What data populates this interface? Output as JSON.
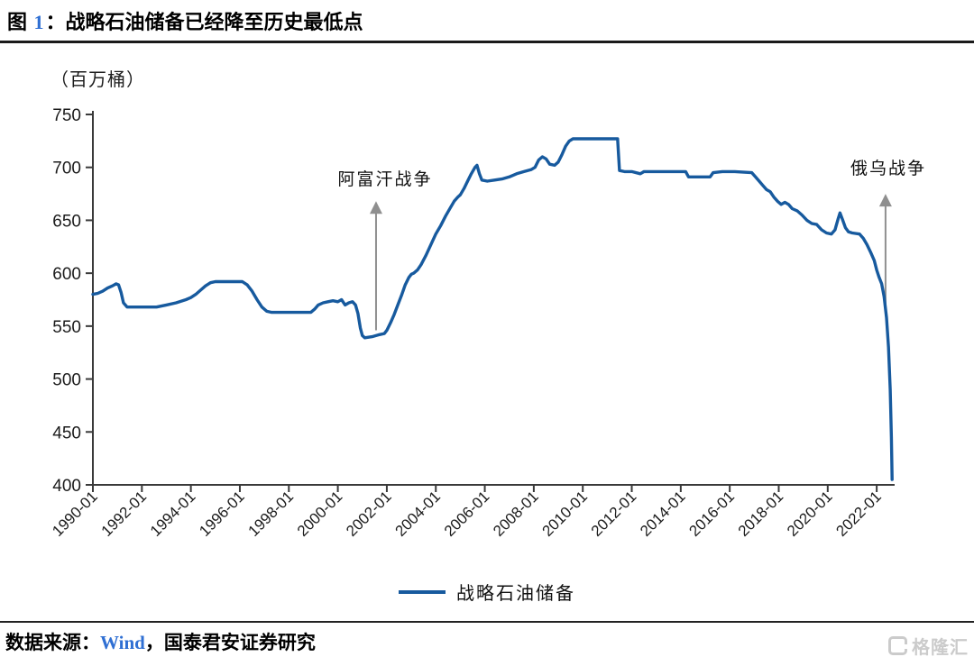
{
  "header": {
    "figure_label": "图",
    "figure_number": "1",
    "separator": "：",
    "title": "战略石油储备已经降至历史最低点"
  },
  "footer": {
    "source_prefix": "数据来源：",
    "source_name": "Wind",
    "source_suffix": "，国泰君安证券研究"
  },
  "watermark": {
    "text": "格隆汇"
  },
  "colors": {
    "line": "#175a9e",
    "accent_blue": "#2f6fd3",
    "arrow": "#8f8f8f",
    "axis": "#3a3a3a",
    "rule": "#1a1a1a",
    "watermark": "#cbcbcb"
  },
  "chart_data": {
    "type": "line",
    "title": "战略石油储备已经降至历史最低点",
    "unit_label": "（百万桶）",
    "xlabel": "",
    "ylabel": "（百万桶）",
    "grid": false,
    "legend_position": "bottom-center",
    "ylim": [
      400,
      750
    ],
    "xlim": [
      1990.0,
      2022.7
    ],
    "y_ticks": [
      750,
      700,
      650,
      600,
      550,
      500,
      450,
      400
    ],
    "x_ticks": [
      "1990-01",
      "1992-01",
      "1994-01",
      "1996-01",
      "1998-01",
      "2000-01",
      "2002-01",
      "2004-01",
      "2006-01",
      "2008-01",
      "2010-01",
      "2012-01",
      "2014-01",
      "2016-01",
      "2018-01",
      "2020-01",
      "2022-01"
    ],
    "x_tick_years": [
      1990,
      1992,
      1994,
      1996,
      1998,
      2000,
      2002,
      2004,
      2006,
      2008,
      2010,
      2012,
      2014,
      2016,
      2018,
      2020,
      2022
    ],
    "series": [
      {
        "name": "战略石油储备",
        "color": "#175a9e",
        "points": [
          [
            1990.0,
            580
          ],
          [
            1990.2,
            581
          ],
          [
            1990.4,
            583
          ],
          [
            1990.6,
            586
          ],
          [
            1990.8,
            588
          ],
          [
            1990.95,
            590
          ],
          [
            1991.05,
            589
          ],
          [
            1991.15,
            582
          ],
          [
            1991.25,
            572
          ],
          [
            1991.4,
            568
          ],
          [
            1992.0,
            568
          ],
          [
            1992.6,
            568
          ],
          [
            1993.0,
            570
          ],
          [
            1993.4,
            572
          ],
          [
            1993.8,
            575
          ],
          [
            1994.0,
            577
          ],
          [
            1994.2,
            580
          ],
          [
            1994.4,
            584
          ],
          [
            1994.6,
            588
          ],
          [
            1994.8,
            591
          ],
          [
            1995.0,
            592
          ],
          [
            1995.5,
            592
          ],
          [
            1996.1,
            592
          ],
          [
            1996.3,
            589
          ],
          [
            1996.5,
            583
          ],
          [
            1996.7,
            575
          ],
          [
            1996.9,
            568
          ],
          [
            1997.1,
            564
          ],
          [
            1997.3,
            563
          ],
          [
            1998.0,
            563
          ],
          [
            1998.9,
            563
          ],
          [
            1999.05,
            566
          ],
          [
            1999.2,
            570
          ],
          [
            1999.4,
            572
          ],
          [
            1999.6,
            573
          ],
          [
            1999.8,
            574
          ],
          [
            2000.0,
            573
          ],
          [
            2000.15,
            575
          ],
          [
            2000.3,
            570
          ],
          [
            2000.45,
            572
          ],
          [
            2000.6,
            573
          ],
          [
            2000.72,
            570
          ],
          [
            2000.82,
            562
          ],
          [
            2000.92,
            548
          ],
          [
            2001.0,
            541
          ],
          [
            2001.1,
            539
          ],
          [
            2001.4,
            540
          ],
          [
            2001.7,
            542
          ],
          [
            2001.9,
            543
          ],
          [
            2002.0,
            546
          ],
          [
            2002.15,
            553
          ],
          [
            2002.3,
            561
          ],
          [
            2002.45,
            570
          ],
          [
            2002.6,
            579
          ],
          [
            2002.75,
            589
          ],
          [
            2002.9,
            596
          ],
          [
            2003.0,
            599
          ],
          [
            2003.1,
            600
          ],
          [
            2003.25,
            603
          ],
          [
            2003.4,
            608
          ],
          [
            2003.6,
            617
          ],
          [
            2003.8,
            627
          ],
          [
            2004.0,
            637
          ],
          [
            2004.2,
            645
          ],
          [
            2004.4,
            654
          ],
          [
            2004.6,
            662
          ],
          [
            2004.75,
            668
          ],
          [
            2004.9,
            672
          ],
          [
            2005.0,
            674
          ],
          [
            2005.15,
            680
          ],
          [
            2005.3,
            687
          ],
          [
            2005.45,
            694
          ],
          [
            2005.6,
            700
          ],
          [
            2005.68,
            702
          ],
          [
            2005.78,
            694
          ],
          [
            2005.88,
            688
          ],
          [
            2006.1,
            687
          ],
          [
            2006.4,
            688
          ],
          [
            2006.7,
            689
          ],
          [
            2007.0,
            691
          ],
          [
            2007.3,
            694
          ],
          [
            2007.6,
            696
          ],
          [
            2007.9,
            698
          ],
          [
            2008.05,
            700
          ],
          [
            2008.2,
            707
          ],
          [
            2008.35,
            710
          ],
          [
            2008.5,
            708
          ],
          [
            2008.65,
            703
          ],
          [
            2008.85,
            702
          ],
          [
            2009.0,
            705
          ],
          [
            2009.15,
            712
          ],
          [
            2009.3,
            720
          ],
          [
            2009.45,
            725
          ],
          [
            2009.6,
            727
          ],
          [
            2010.0,
            727
          ],
          [
            2010.5,
            727
          ],
          [
            2011.0,
            727
          ],
          [
            2011.42,
            727
          ],
          [
            2011.5,
            697
          ],
          [
            2011.7,
            696
          ],
          [
            2012.0,
            696
          ],
          [
            2012.35,
            694
          ],
          [
            2012.5,
            696
          ],
          [
            2013.0,
            696
          ],
          [
            2013.5,
            696
          ],
          [
            2014.2,
            696
          ],
          [
            2014.32,
            691
          ],
          [
            2014.7,
            691
          ],
          [
            2015.2,
            691
          ],
          [
            2015.32,
            695
          ],
          [
            2015.7,
            696
          ],
          [
            2016.2,
            696
          ],
          [
            2016.9,
            695
          ],
          [
            2017.05,
            691
          ],
          [
            2017.2,
            687
          ],
          [
            2017.35,
            683
          ],
          [
            2017.5,
            679
          ],
          [
            2017.65,
            677
          ],
          [
            2017.8,
            672
          ],
          [
            2017.95,
            668
          ],
          [
            2018.1,
            665
          ],
          [
            2018.25,
            667
          ],
          [
            2018.4,
            665
          ],
          [
            2018.55,
            661
          ],
          [
            2018.75,
            659
          ],
          [
            2018.95,
            655
          ],
          [
            2019.15,
            650
          ],
          [
            2019.35,
            647
          ],
          [
            2019.55,
            646
          ],
          [
            2019.75,
            641
          ],
          [
            2019.95,
            638
          ],
          [
            2020.15,
            637
          ],
          [
            2020.3,
            641
          ],
          [
            2020.42,
            651
          ],
          [
            2020.5,
            657
          ],
          [
            2020.6,
            651
          ],
          [
            2020.72,
            643
          ],
          [
            2020.85,
            639
          ],
          [
            2021.0,
            638
          ],
          [
            2021.3,
            637
          ],
          [
            2021.45,
            633
          ],
          [
            2021.6,
            627
          ],
          [
            2021.75,
            620
          ],
          [
            2021.9,
            612
          ],
          [
            2022.0,
            603
          ],
          [
            2022.1,
            596
          ],
          [
            2022.2,
            590
          ],
          [
            2022.3,
            578
          ],
          [
            2022.4,
            558
          ],
          [
            2022.48,
            530
          ],
          [
            2022.55,
            490
          ],
          [
            2022.6,
            445
          ],
          [
            2022.63,
            405
          ]
        ]
      }
    ],
    "annotations": [
      {
        "label": "阿富汗战争",
        "arrow_year": 2001.56,
        "value_from": 546,
        "value_to": 668
      },
      {
        "label": "俄乌战争",
        "arrow_year": 2022.36,
        "value_from": 569,
        "value_to": 675
      }
    ]
  }
}
